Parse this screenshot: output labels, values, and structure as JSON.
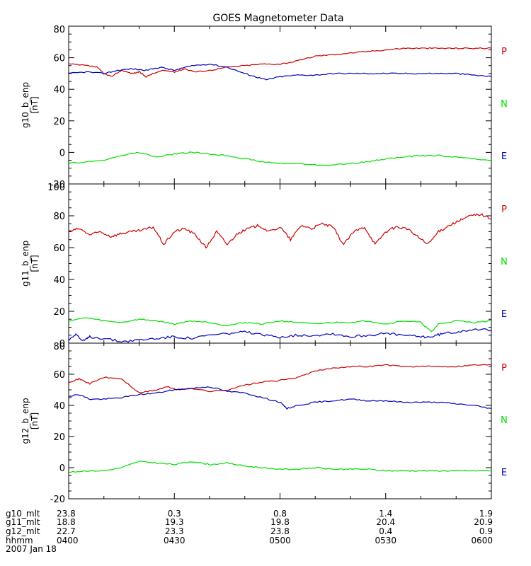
{
  "chart_data": {
    "type": "line",
    "title": "GOES Magnetometer Data",
    "xlabel": "",
    "x_tick_labels": [
      "0400",
      "0430",
      "0500",
      "0530",
      "0600"
    ],
    "x_minutes": [
      0,
      30,
      60,
      90,
      120
    ],
    "colors": {
      "P": "#cc0000",
      "N": "#00dd00",
      "E": "#0000bb"
    },
    "panels": [
      {
        "ylabel": "g10_b_enp",
        "units": "[nT]",
        "ylim": [
          -20,
          80
        ],
        "yticks": [
          -20,
          0,
          20,
          40,
          60,
          80
        ],
        "legend": [
          "P",
          "N",
          "E"
        ],
        "series": [
          {
            "name": "P",
            "x": [
              0,
              5,
              8,
              10,
              12,
              15,
              18,
              20,
              22,
              24,
              27,
              30,
              33,
              36,
              40,
              45,
              50,
              55,
              60,
              65,
              70,
              75,
              80,
              85,
              90,
              95,
              100,
              105,
              110,
              115,
              120
            ],
            "values": [
              56,
              55,
              54,
              50,
              48,
              52,
              50,
              51,
              48,
              50,
              52,
              51,
              53,
              51,
              52,
              54,
              55,
              56,
              56,
              58,
              61,
              62,
              63,
              64,
              65,
              66,
              66,
              66,
              66,
              66,
              66
            ]
          },
          {
            "name": "E",
            "x": [
              0,
              5,
              10,
              14,
              18,
              22,
              26,
              30,
              35,
              40,
              45,
              50,
              53,
              56,
              60,
              65,
              70,
              75,
              80,
              85,
              90,
              95,
              100,
              105,
              110,
              115,
              120
            ],
            "values": [
              50,
              51,
              50,
              52,
              53,
              52,
              54,
              52,
              55,
              56,
              54,
              50,
              48,
              46,
              48,
              49,
              49,
              50,
              50,
              50,
              50,
              50,
              50,
              50,
              50,
              49,
              48
            ]
          },
          {
            "name": "N",
            "x": [
              0,
              5,
              10,
              15,
              20,
              25,
              30,
              35,
              40,
              45,
              50,
              55,
              60,
              65,
              70,
              75,
              80,
              85,
              90,
              95,
              100,
              105,
              110,
              115,
              120
            ],
            "values": [
              -7,
              -6,
              -5,
              -2,
              0,
              -3,
              -1,
              0,
              -1,
              -2,
              -4,
              -6,
              -7,
              -7,
              -8,
              -8,
              -7,
              -6,
              -4,
              -3,
              -2,
              -2,
              -3,
              -4,
              -5
            ]
          }
        ]
      },
      {
        "ylabel": "g11_b_enp",
        "units": "[nT]",
        "ylim": [
          0,
          100
        ],
        "yticks": [
          0,
          20,
          40,
          60,
          80,
          100
        ],
        "legend": [
          "P",
          "N",
          "E"
        ],
        "series": [
          {
            "name": "P",
            "x": [
              0,
              3,
              6,
              9,
              12,
              15,
              18,
              21,
              24,
              27,
              30,
              33,
              36,
              39,
              42,
              45,
              48,
              51,
              54,
              57,
              60,
              63,
              66,
              69,
              72,
              75,
              78,
              81,
              84,
              87,
              90,
              93,
              96,
              99,
              102,
              105,
              108,
              111,
              114,
              117,
              120
            ],
            "values": [
              70,
              72,
              68,
              70,
              67,
              69,
              70,
              71,
              73,
              62,
              70,
              72,
              68,
              60,
              70,
              62,
              69,
              72,
              74,
              70,
              73,
              65,
              74,
              72,
              75,
              73,
              62,
              70,
              73,
              62,
              70,
              73,
              72,
              67,
              62,
              70,
              74,
              77,
              80,
              81,
              78
            ]
          },
          {
            "name": "N",
            "x": [
              0,
              5,
              10,
              15,
              20,
              25,
              30,
              35,
              40,
              45,
              50,
              55,
              60,
              65,
              70,
              75,
              80,
              85,
              90,
              95,
              100,
              103,
              105,
              110,
              115,
              120
            ],
            "values": [
              14,
              16,
              14,
              13,
              15,
              14,
              12,
              14,
              13,
              11,
              13,
              12,
              14,
              13,
              12,
              13,
              13,
              14,
              12,
              14,
              13,
              7,
              12,
              14,
              13,
              14
            ]
          },
          {
            "name": "E",
            "x": [
              0,
              2,
              4,
              6,
              10,
              15,
              20,
              25,
              30,
              35,
              40,
              45,
              50,
              55,
              60,
              65,
              70,
              75,
              80,
              85,
              90,
              95,
              100,
              103,
              106,
              110,
              115,
              120
            ],
            "values": [
              2,
              6,
              1,
              4,
              3,
              1,
              2,
              3,
              4,
              3,
              5,
              6,
              7,
              5,
              4,
              5,
              5,
              6,
              4,
              5,
              6,
              5,
              4,
              4,
              6,
              7,
              9,
              8
            ]
          }
        ]
      },
      {
        "ylabel": "g12_b_enp",
        "units": "[nT]",
        "ylim": [
          -20,
          80
        ],
        "yticks": [
          -20,
          0,
          20,
          40,
          60,
          80
        ],
        "legend": [
          "P",
          "N",
          "E"
        ],
        "series": [
          {
            "name": "P",
            "x": [
              0,
              3,
              6,
              10,
              15,
              20,
              25,
              28,
              31,
              35,
              40,
              45,
              50,
              55,
              60,
              65,
              70,
              75,
              80,
              85,
              90,
              95,
              100,
              105,
              110,
              115,
              120
            ],
            "values": [
              55,
              57,
              54,
              58,
              57,
              48,
              50,
              52,
              50,
              51,
              49,
              50,
              53,
              55,
              56,
              58,
              62,
              64,
              65,
              65,
              66,
              65,
              65,
              65,
              65,
              66,
              66
            ]
          },
          {
            "name": "E",
            "x": [
              0,
              3,
              6,
              10,
              15,
              20,
              25,
              30,
              35,
              40,
              45,
              50,
              55,
              60,
              62,
              65,
              70,
              75,
              80,
              85,
              90,
              95,
              100,
              105,
              110,
              115,
              120
            ],
            "values": [
              46,
              47,
              44,
              44,
              45,
              47,
              48,
              50,
              51,
              52,
              49,
              48,
              45,
              42,
              38,
              40,
              42,
              43,
              44,
              43,
              43,
              42,
              42,
              42,
              41,
              40,
              38
            ]
          },
          {
            "name": "N",
            "x": [
              0,
              5,
              10,
              15,
              20,
              25,
              30,
              35,
              40,
              45,
              50,
              55,
              60,
              65,
              70,
              75,
              80,
              85,
              90,
              95,
              100,
              105,
              110,
              115,
              120
            ],
            "values": [
              -3,
              -2,
              -2,
              0,
              4,
              3,
              2,
              4,
              2,
              3,
              1,
              0,
              -1,
              -1,
              0,
              -1,
              -1,
              -1,
              -2,
              -2,
              -2,
              -2,
              -2,
              -2,
              -2
            ]
          }
        ]
      }
    ]
  },
  "footer": {
    "rows": [
      {
        "label": "g10_mlt",
        "values": [
          "23.8",
          "0.3",
          "0.8",
          "1.4",
          "1.9"
        ]
      },
      {
        "label": "g11_mlt",
        "values": [
          "18.8",
          "19.3",
          "19.8",
          "20.4",
          "20.9"
        ]
      },
      {
        "label": "g12_mlt",
        "values": [
          "22.7",
          "23.3",
          "23.8",
          "0.4",
          "0.9"
        ]
      },
      {
        "label": "hhmm",
        "values": [
          "0400",
          "0430",
          "0500",
          "0530",
          "0600"
        ]
      }
    ],
    "date": "2007 Jan 18"
  }
}
